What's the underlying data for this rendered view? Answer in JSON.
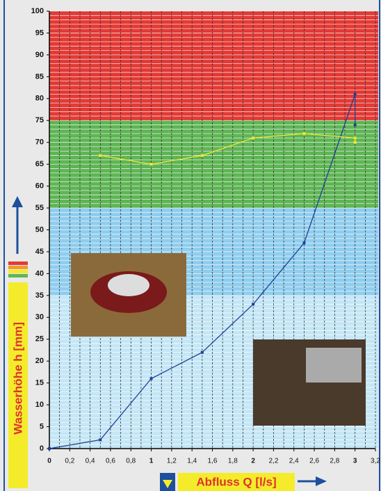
{
  "chart_data": {
    "type": "line",
    "x_label": "Abfluss Q [l/s]",
    "y_label": "Wasserhöhe h [mm]",
    "xlim": [
      0,
      3.2
    ],
    "ylim": [
      0,
      100
    ],
    "xticks": [
      0,
      {
        "value": 0.2,
        "label": "0,2"
      },
      {
        "value": 0.4,
        "label": "0,4"
      },
      {
        "value": 0.6,
        "label": "0,6"
      },
      {
        "value": 0.8,
        "label": "0,8"
      },
      1,
      {
        "value": 1.2,
        "label": "1,2"
      },
      {
        "value": 1.4,
        "label": "1,4"
      },
      {
        "value": 1.6,
        "label": "1,6"
      },
      {
        "value": 1.8,
        "label": "1,8"
      },
      2,
      {
        "value": 2.2,
        "label": "2,2"
      },
      {
        "value": 2.4,
        "label": "2,4"
      },
      {
        "value": 2.6,
        "label": "2,6"
      },
      {
        "value": 2.8,
        "label": "2,8"
      },
      3,
      {
        "value": 3.2,
        "label": "3,2"
      }
    ],
    "yticks": [
      0,
      5,
      10,
      15,
      20,
      25,
      30,
      35,
      40,
      45,
      50,
      55,
      60,
      65,
      70,
      75,
      80,
      85,
      90,
      95,
      100
    ],
    "bands": [
      {
        "from": 75,
        "to": 100,
        "color": "#e23a35"
      },
      {
        "from": 55,
        "to": 75,
        "color": "#5fb555"
      },
      {
        "from": 35,
        "to": 55,
        "color": "#8fcdee"
      },
      {
        "from": 0,
        "to": 35,
        "color": "#c4e6f6"
      }
    ],
    "series": [
      {
        "color": "#1f3f95",
        "x": [
          0,
          0.5,
          1,
          1.5,
          2,
          2.5,
          3,
          3
        ],
        "values": [
          0,
          2,
          16,
          22,
          33,
          47,
          81,
          74
        ]
      },
      {
        "color": "#f2e632",
        "x": [
          0.5,
          1,
          1.5,
          2,
          2.5,
          3,
          3
        ],
        "values": [
          67,
          65,
          67,
          71,
          72,
          71,
          70
        ]
      }
    ]
  }
}
